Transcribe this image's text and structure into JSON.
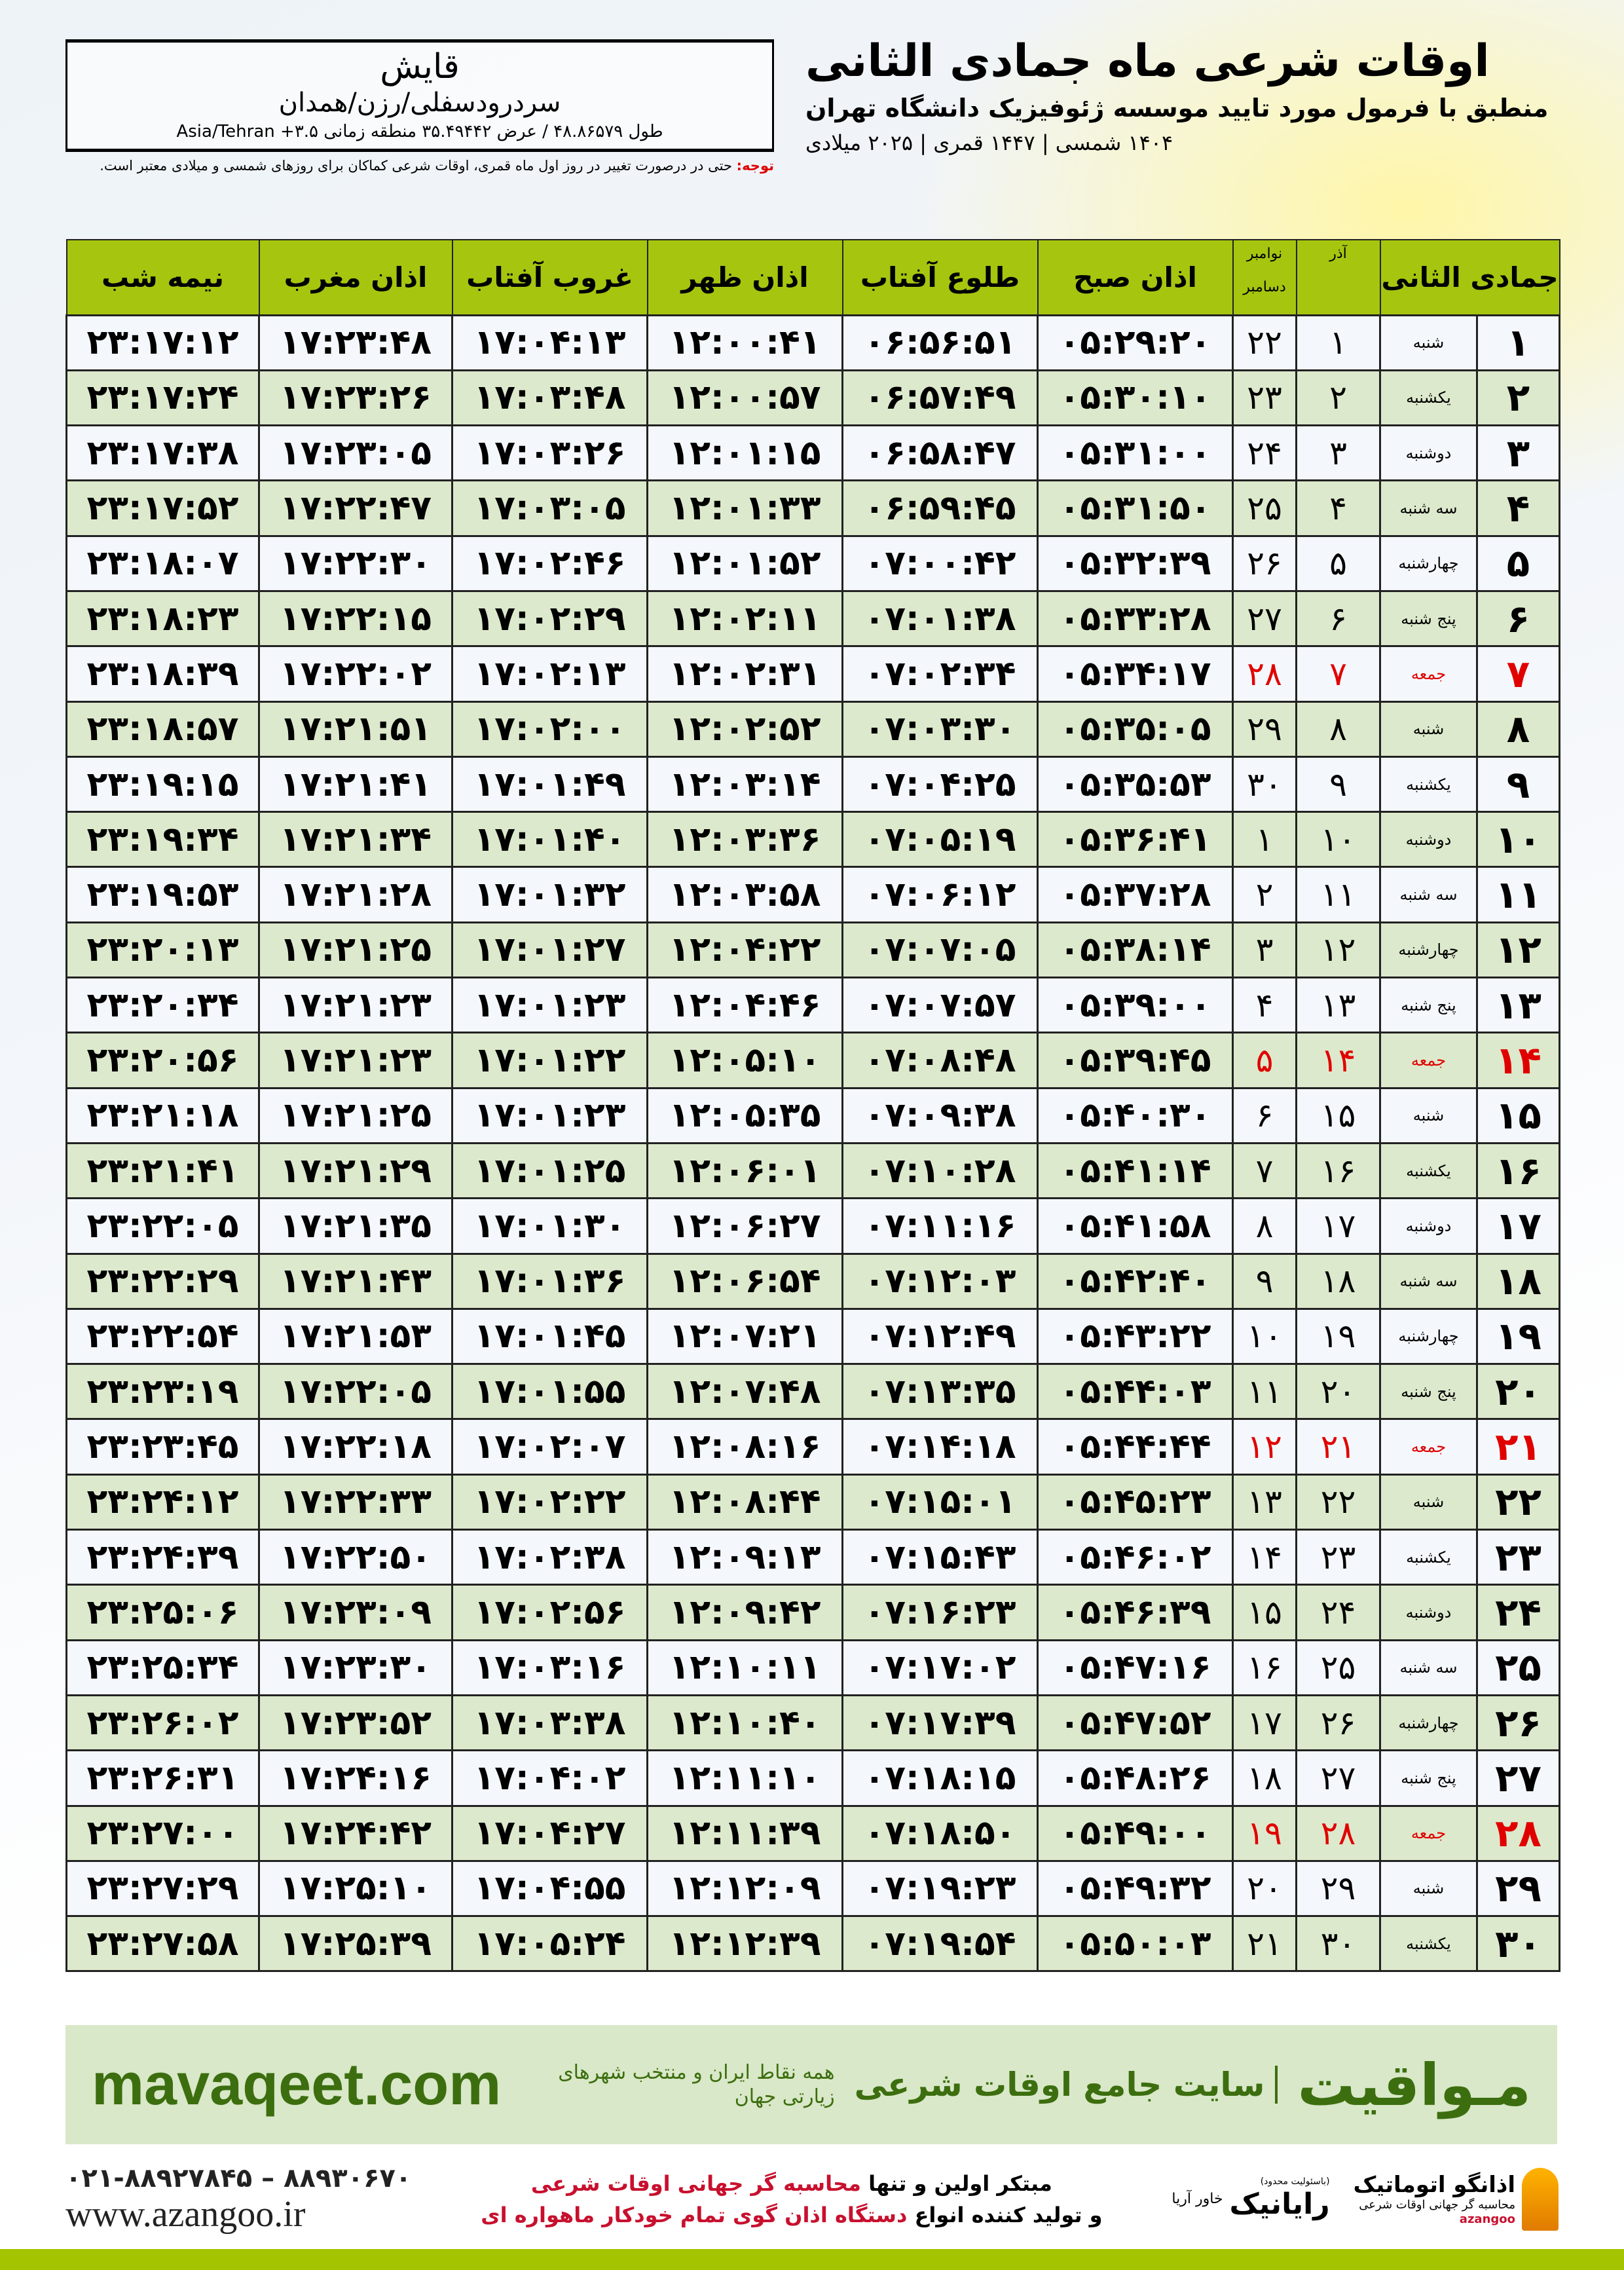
{
  "header": {
    "title": "اوقات شرعی ماه جمادی الثانی",
    "subtitle": "منطبق با فرمول مورد تایید موسسه ژئوفیزیک دانشگاه تهران",
    "dates": "۱۴۰۴ شمسی | ۱۴۴۷ قمری | ۲۰۲۵ میلادی"
  },
  "location": {
    "city": "قایش",
    "region": "سردرودسفلی/رزن/همدان",
    "coords": "طول ۴۸.۸۶۵۷۹ / عرض ۳۵.۴۹۴۴۲ منطقه زمانی ۳.۵+ Asia/Tehran"
  },
  "note": {
    "label": "توجه:",
    "text": " حتی در درصورت تغییر در روز اول ماه قمری، اوقات شرعی کماکان برای روزهای شمسی و میلادی معتبر است."
  },
  "table": {
    "headers": {
      "month": "جمادی الثانی",
      "azar": "آذر",
      "greg_top": "نوامبر",
      "greg_bottom": "دسامبر",
      "fajr": "اذان صبح",
      "sunrise": "طلوع آفتاب",
      "dhuhr": "اذان ظهر",
      "sunset": "غروب آفتاب",
      "maghrib": "اذان مغرب",
      "midnight": "نیمه شب"
    },
    "rows": [
      [
        "۱",
        "شنبه",
        "۱",
        "۲۲",
        "۰۵:۲۹:۲۰",
        "۰۶:۵۶:۵۱",
        "۱۲:۰۰:۴۱",
        "۱۷:۰۴:۱۳",
        "۱۷:۲۳:۴۸",
        "۲۳:۱۷:۱۲"
      ],
      [
        "۲",
        "یکشنبه",
        "۲",
        "۲۳",
        "۰۵:۳۰:۱۰",
        "۰۶:۵۷:۴۹",
        "۱۲:۰۰:۵۷",
        "۱۷:۰۳:۴۸",
        "۱۷:۲۳:۲۶",
        "۲۳:۱۷:۲۴"
      ],
      [
        "۳",
        "دوشنبه",
        "۳",
        "۲۴",
        "۰۵:۳۱:۰۰",
        "۰۶:۵۸:۴۷",
        "۱۲:۰۱:۱۵",
        "۱۷:۰۳:۲۶",
        "۱۷:۲۳:۰۵",
        "۲۳:۱۷:۳۸"
      ],
      [
        "۴",
        "سه شنبه",
        "۴",
        "۲۵",
        "۰۵:۳۱:۵۰",
        "۰۶:۵۹:۴۵",
        "۱۲:۰۱:۳۳",
        "۱۷:۰۳:۰۵",
        "۱۷:۲۲:۴۷",
        "۲۳:۱۷:۵۲"
      ],
      [
        "۵",
        "چهارشنبه",
        "۵",
        "۲۶",
        "۰۵:۳۲:۳۹",
        "۰۷:۰۰:۴۲",
        "۱۲:۰۱:۵۲",
        "۱۷:۰۲:۴۶",
        "۱۷:۲۲:۳۰",
        "۲۳:۱۸:۰۷"
      ],
      [
        "۶",
        "پنج شنبه",
        "۶",
        "۲۷",
        "۰۵:۳۳:۲۸",
        "۰۷:۰۱:۳۸",
        "۱۲:۰۲:۱۱",
        "۱۷:۰۲:۲۹",
        "۱۷:۲۲:۱۵",
        "۲۳:۱۸:۲۳"
      ],
      [
        "۷",
        "جمعه",
        "۷",
        "۲۸",
        "۰۵:۳۴:۱۷",
        "۰۷:۰۲:۳۴",
        "۱۲:۰۲:۳۱",
        "۱۷:۰۲:۱۳",
        "۱۷:۲۲:۰۲",
        "۲۳:۱۸:۳۹"
      ],
      [
        "۸",
        "شنبه",
        "۸",
        "۲۹",
        "۰۵:۳۵:۰۵",
        "۰۷:۰۳:۳۰",
        "۱۲:۰۲:۵۲",
        "۱۷:۰۲:۰۰",
        "۱۷:۲۱:۵۱",
        "۲۳:۱۸:۵۷"
      ],
      [
        "۹",
        "یکشنبه",
        "۹",
        "۳۰",
        "۰۵:۳۵:۵۳",
        "۰۷:۰۴:۲۵",
        "۱۲:۰۳:۱۴",
        "۱۷:۰۱:۴۹",
        "۱۷:۲۱:۴۱",
        "۲۳:۱۹:۱۵"
      ],
      [
        "۱۰",
        "دوشنبه",
        "۱۰",
        "۱",
        "۰۵:۳۶:۴۱",
        "۰۷:۰۵:۱۹",
        "۱۲:۰۳:۳۶",
        "۱۷:۰۱:۴۰",
        "۱۷:۲۱:۳۴",
        "۲۳:۱۹:۳۴"
      ],
      [
        "۱۱",
        "سه شنبه",
        "۱۱",
        "۲",
        "۰۵:۳۷:۲۸",
        "۰۷:۰۶:۱۲",
        "۱۲:۰۳:۵۸",
        "۱۷:۰۱:۳۲",
        "۱۷:۲۱:۲۸",
        "۲۳:۱۹:۵۳"
      ],
      [
        "۱۲",
        "چهارشنبه",
        "۱۲",
        "۳",
        "۰۵:۳۸:۱۴",
        "۰۷:۰۷:۰۵",
        "۱۲:۰۴:۲۲",
        "۱۷:۰۱:۲۷",
        "۱۷:۲۱:۲۵",
        "۲۳:۲۰:۱۳"
      ],
      [
        "۱۳",
        "پنج شنبه",
        "۱۳",
        "۴",
        "۰۵:۳۹:۰۰",
        "۰۷:۰۷:۵۷",
        "۱۲:۰۴:۴۶",
        "۱۷:۰۱:۲۳",
        "۱۷:۲۱:۲۳",
        "۲۳:۲۰:۳۴"
      ],
      [
        "۱۴",
        "جمعه",
        "۱۴",
        "۵",
        "۰۵:۳۹:۴۵",
        "۰۷:۰۸:۴۸",
        "۱۲:۰۵:۱۰",
        "۱۷:۰۱:۲۲",
        "۱۷:۲۱:۲۳",
        "۲۳:۲۰:۵۶"
      ],
      [
        "۱۵",
        "شنبه",
        "۱۵",
        "۶",
        "۰۵:۴۰:۳۰",
        "۰۷:۰۹:۳۸",
        "۱۲:۰۵:۳۵",
        "۱۷:۰۱:۲۳",
        "۱۷:۲۱:۲۵",
        "۲۳:۲۱:۱۸"
      ],
      [
        "۱۶",
        "یکشنبه",
        "۱۶",
        "۷",
        "۰۵:۴۱:۱۴",
        "۰۷:۱۰:۲۸",
        "۱۲:۰۶:۰۱",
        "۱۷:۰۱:۲۵",
        "۱۷:۲۱:۲۹",
        "۲۳:۲۱:۴۱"
      ],
      [
        "۱۷",
        "دوشنبه",
        "۱۷",
        "۸",
        "۰۵:۴۱:۵۸",
        "۰۷:۱۱:۱۶",
        "۱۲:۰۶:۲۷",
        "۱۷:۰۱:۳۰",
        "۱۷:۲۱:۳۵",
        "۲۳:۲۲:۰۵"
      ],
      [
        "۱۸",
        "سه شنبه",
        "۱۸",
        "۹",
        "۰۵:۴۲:۴۰",
        "۰۷:۱۲:۰۳",
        "۱۲:۰۶:۵۴",
        "۱۷:۰۱:۳۶",
        "۱۷:۲۱:۴۳",
        "۲۳:۲۲:۲۹"
      ],
      [
        "۱۹",
        "چهارشنبه",
        "۱۹",
        "۱۰",
        "۰۵:۴۳:۲۲",
        "۰۷:۱۲:۴۹",
        "۱۲:۰۷:۲۱",
        "۱۷:۰۱:۴۵",
        "۱۷:۲۱:۵۳",
        "۲۳:۲۲:۵۴"
      ],
      [
        "۲۰",
        "پنج شنبه",
        "۲۰",
        "۱۱",
        "۰۵:۴۴:۰۳",
        "۰۷:۱۳:۳۵",
        "۱۲:۰۷:۴۸",
        "۱۷:۰۱:۵۵",
        "۱۷:۲۲:۰۵",
        "۲۳:۲۳:۱۹"
      ],
      [
        "۲۱",
        "جمعه",
        "۲۱",
        "۱۲",
        "۰۵:۴۴:۴۴",
        "۰۷:۱۴:۱۸",
        "۱۲:۰۸:۱۶",
        "۱۷:۰۲:۰۷",
        "۱۷:۲۲:۱۸",
        "۲۳:۲۳:۴۵"
      ],
      [
        "۲۲",
        "شنبه",
        "۲۲",
        "۱۳",
        "۰۵:۴۵:۲۳",
        "۰۷:۱۵:۰۱",
        "۱۲:۰۸:۴۴",
        "۱۷:۰۲:۲۲",
        "۱۷:۲۲:۳۳",
        "۲۳:۲۴:۱۲"
      ],
      [
        "۲۳",
        "یکشنبه",
        "۲۳",
        "۱۴",
        "۰۵:۴۶:۰۲",
        "۰۷:۱۵:۴۳",
        "۱۲:۰۹:۱۳",
        "۱۷:۰۲:۳۸",
        "۱۷:۲۲:۵۰",
        "۲۳:۲۴:۳۹"
      ],
      [
        "۲۴",
        "دوشنبه",
        "۲۴",
        "۱۵",
        "۰۵:۴۶:۳۹",
        "۰۷:۱۶:۲۳",
        "۱۲:۰۹:۴۲",
        "۱۷:۰۲:۵۶",
        "۱۷:۲۳:۰۹",
        "۲۳:۲۵:۰۶"
      ],
      [
        "۲۵",
        "سه شنبه",
        "۲۵",
        "۱۶",
        "۰۵:۴۷:۱۶",
        "۰۷:۱۷:۰۲",
        "۱۲:۱۰:۱۱",
        "۱۷:۰۳:۱۶",
        "۱۷:۲۳:۳۰",
        "۲۳:۲۵:۳۴"
      ],
      [
        "۲۶",
        "چهارشنبه",
        "۲۶",
        "۱۷",
        "۰۵:۴۷:۵۲",
        "۰۷:۱۷:۳۹",
        "۱۲:۱۰:۴۰",
        "۱۷:۰۳:۳۸",
        "۱۷:۲۳:۵۲",
        "۲۳:۲۶:۰۲"
      ],
      [
        "۲۷",
        "پنج شنبه",
        "۲۷",
        "۱۸",
        "۰۵:۴۸:۲۶",
        "۰۷:۱۸:۱۵",
        "۱۲:۱۱:۱۰",
        "۱۷:۰۴:۰۲",
        "۱۷:۲۴:۱۶",
        "۲۳:۲۶:۳۱"
      ],
      [
        "۲۸",
        "جمعه",
        "۲۸",
        "۱۹",
        "۰۵:۴۹:۰۰",
        "۰۷:۱۸:۵۰",
        "۱۲:۱۱:۳۹",
        "۱۷:۰۴:۲۷",
        "۱۷:۲۴:۴۲",
        "۲۳:۲۷:۰۰"
      ],
      [
        "۲۹",
        "شنبه",
        "۲۹",
        "۲۰",
        "۰۵:۴۹:۳۲",
        "۰۷:۱۹:۲۳",
        "۱۲:۱۲:۰۹",
        "۱۷:۰۴:۵۵",
        "۱۷:۲۵:۱۰",
        "۲۳:۲۷:۲۹"
      ],
      [
        "۳۰",
        "یکشنبه",
        "۳۰",
        "۲۱",
        "۰۵:۵۰:۰۳",
        "۰۷:۱۹:۵۴",
        "۱۲:۱۲:۳۹",
        "۱۷:۰۵:۲۴",
        "۱۷:۲۵:۳۹",
        "۲۳:۲۷:۵۸"
      ]
    ],
    "friday_label": "جمعه",
    "colors": {
      "header": "#a6c50f",
      "row_green": "#dde9cc",
      "row_light": "#f4f8fc",
      "friday": "#e00000"
    }
  },
  "footer": {
    "brand": "مـواقیت",
    "tagline": "سایت جامع اوقات شرعی",
    "tagsub": "همه نقاط ایران و منتخب شهرهای زیارتی جهان",
    "site": "mavaqeet.com",
    "phone": "۰۲۱-۸۸۹۲۷۸۴۵ – ۸۸۹۳۰۶۷۰",
    "www": "www.azangoo.ir",
    "promo_1a": "مبتکر اولین و تنها ",
    "promo_1b": "محاسبه گر جهانی اوقات شرعی",
    "promo_2a": "و تولید کننده انواع ",
    "promo_2b": "دستگاه اذان گوی تمام خودکار ماهواره ای",
    "logo1_name": "اذانگو اتوماتیک",
    "logo1_sub": "محاسبه گر جهانی اوقات شرعی",
    "logo1_en": "azangoo",
    "logo2_small": "(باسئولیت محدود)",
    "logo2_name": "رایانیک",
    "logo2_side": "خاور آریا",
    "colors": {
      "brand_green": "#3c6e0f",
      "box": "#d9e8c8",
      "strip": "#a5c400",
      "red": "#c8102e"
    }
  }
}
